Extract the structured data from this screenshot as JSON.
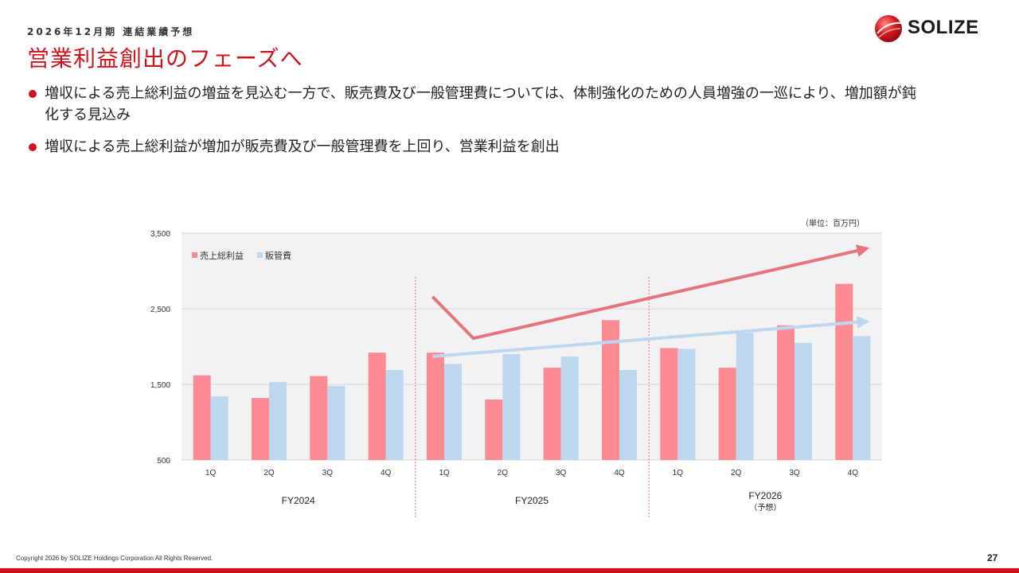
{
  "header": {
    "subtitle": "2026年12月期 連結業績予想",
    "title": "営業利益創出のフェーズへ",
    "logo_text": "SOLIZE"
  },
  "bullets": [
    "増収による売上総利益の増益を見込む一方で、販売費及び一般管理費については、体制強化のための人員増強の一巡により、増加額が鈍化する見込み",
    "増収による売上総利益が増加が販売費及び一般管理費を上回り、営業利益を創出"
  ],
  "chart_data": {
    "type": "bar",
    "unit_label": "（単位：百万円）",
    "categories": [
      "1Q",
      "2Q",
      "3Q",
      "4Q",
      "1Q",
      "2Q",
      "3Q",
      "4Q",
      "1Q",
      "2Q",
      "3Q",
      "4Q"
    ],
    "groups": [
      {
        "label": "FY2024",
        "sublabel": ""
      },
      {
        "label": "FY2025",
        "sublabel": ""
      },
      {
        "label": "FY2026",
        "sublabel": "（予想）"
      }
    ],
    "series": [
      {
        "name": "売上総利益",
        "color": "#fc8a93",
        "values": [
          1620,
          1320,
          1610,
          1920,
          1920,
          1300,
          1720,
          2350,
          1980,
          1720,
          2280,
          2830
        ]
      },
      {
        "name": "販管費",
        "color": "#bdd7ee",
        "values": [
          1340,
          1530,
          1480,
          1690,
          1770,
          1900,
          1870,
          1690,
          1970,
          2180,
          2050,
          2140
        ]
      }
    ],
    "y_axis": {
      "min": 500,
      "max": 3500,
      "ticks": [
        500,
        1500,
        2500,
        3500
      ],
      "tick_labels": [
        "500",
        "1,500",
        "2,500",
        "3,500"
      ]
    },
    "grid": true,
    "legend_position": "top-left",
    "trend_lines": [
      {
        "series": "売上総利益",
        "color": "#e5747b",
        "points": [
          [
            4.3,
            2660
          ],
          [
            5.0,
            2110
          ],
          [
            11.7,
            3290
          ]
        ]
      },
      {
        "series": "販管費",
        "color": "#bdd7ee",
        "points": [
          [
            4.3,
            1870
          ],
          [
            11.7,
            2330
          ]
        ]
      }
    ]
  },
  "footer": {
    "copyright": "Copyright 2026 by SOLIZE Holdings Corporation All Rights Reserved.",
    "page_number": "27"
  }
}
